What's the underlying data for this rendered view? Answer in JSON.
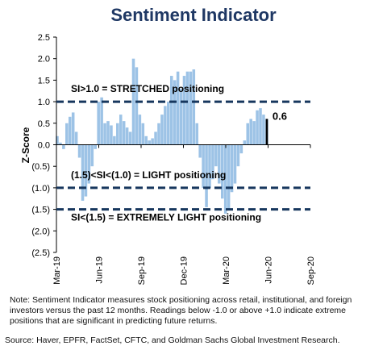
{
  "chart_data": {
    "type": "bar",
    "title": "Sentiment Indicator",
    "ylabel": "Z-Score",
    "ylim": [
      -2.5,
      2.5
    ],
    "yticks": [
      {
        "value": 2.5,
        "label": "2.5"
      },
      {
        "value": 2.0,
        "label": "2.0"
      },
      {
        "value": 1.5,
        "label": "1.5"
      },
      {
        "value": 1.0,
        "label": "1.0"
      },
      {
        "value": 0.5,
        "label": "0.5"
      },
      {
        "value": 0.0,
        "label": "0.0"
      },
      {
        "value": -0.5,
        "label": "(0.5)"
      },
      {
        "value": -1.0,
        "label": "(1.0)"
      },
      {
        "value": -1.5,
        "label": "(1.5)"
      },
      {
        "value": -2.0,
        "label": "(2.0)"
      },
      {
        "value": -2.5,
        "label": "(2.5)"
      }
    ],
    "xticks": [
      "Mar-19",
      "Jun-19",
      "Sep-19",
      "Dec-19",
      "Mar-20",
      "Jun-20",
      "Sep-20"
    ],
    "x_range_weeks": [
      0,
      80
    ],
    "series": [
      {
        "color": "#9dc3e6",
        "x_weeks": [
          0,
          1,
          2,
          3,
          4,
          5,
          6,
          7,
          8,
          9,
          10,
          11,
          12,
          13,
          14,
          15,
          16,
          17,
          18,
          19,
          20,
          21,
          22,
          23,
          24,
          25,
          26,
          27,
          28,
          29,
          30,
          31,
          32,
          33,
          34,
          35,
          36,
          37,
          38,
          39,
          40,
          41,
          42,
          43,
          44,
          45,
          46,
          47,
          48,
          49,
          50,
          51,
          52,
          53,
          54,
          55,
          56,
          57,
          58,
          59,
          60,
          61,
          62,
          63,
          64,
          65,
          66
        ],
        "values": [
          0.2,
          0.05,
          -0.1,
          0.5,
          0.65,
          0.75,
          0.3,
          -0.3,
          -1.3,
          -1.2,
          -0.9,
          -0.5,
          -0.1,
          1.0,
          1.1,
          0.5,
          0.55,
          0.45,
          0.2,
          0.5,
          0.7,
          0.55,
          0.4,
          0.3,
          2.0,
          1.8,
          0.7,
          0.5,
          0.2,
          0.1,
          0.15,
          0.3,
          0.5,
          0.7,
          0.9,
          1.0,
          1.6,
          1.5,
          1.7,
          1.3,
          1.6,
          1.7,
          1.7,
          1.75,
          0.5,
          -0.3,
          -1.0,
          -1.45,
          -1.0,
          -0.8,
          -0.5,
          -0.9,
          -1.25,
          -1.6,
          -1.5,
          -1.1,
          -0.9,
          -0.5,
          -0.2,
          0.1,
          0.5,
          0.6,
          0.55,
          0.8,
          0.85,
          0.7,
          0.6
        ]
      }
    ],
    "highlight": {
      "x_week": 66,
      "value": 0.6,
      "label": "0.6",
      "color": "#000000"
    },
    "reference_lines": [
      {
        "value": 1.0,
        "label": "SI>1.0 = STRETCHED positioning",
        "color": "#17375e"
      },
      {
        "value": -1.0,
        "label": "(1.5)<SI<(1.0) = LIGHT positioning",
        "color": "#17375e"
      },
      {
        "value": -1.5,
        "label": "SI<(1.5) = EXTREMELY LIGHT positioning",
        "color": "#17375e"
      }
    ],
    "grid": false,
    "legend": "none"
  },
  "note": "Note: Sentiment Indicator measures stock positioning across retail, institutional, and foreign investors versus the past 12 months. Readings below -1.0 or above +1.0 indicate extreme positions that are significant in predicting future returns.",
  "source": "Source: Haver, EPFR, FactSet, CFTC, and Goldman Sachs Global Investment Research."
}
